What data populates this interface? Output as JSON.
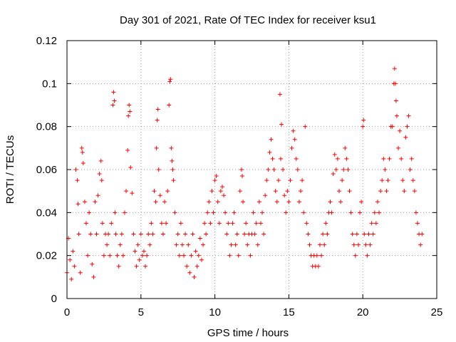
{
  "chart_data": {
    "type": "scatter",
    "title": "Day 301 of 2021, Rate Of TEC Index for receiver ksu1",
    "xlabel": "GPS time / hours",
    "ylabel": "ROTI / TECUs",
    "xlim": [
      0,
      25
    ],
    "ylim": [
      0,
      0.12
    ],
    "xticks": [
      0,
      5,
      10,
      15,
      20,
      25
    ],
    "xtick_labels": [
      "0",
      "5",
      "10",
      "15",
      "20",
      "25"
    ],
    "yticks": [
      0,
      0.02,
      0.04,
      0.06,
      0.08,
      0.1,
      0.12
    ],
    "ytick_labels": [
      "0",
      "0.02",
      "0.04",
      "0.06",
      "0.08",
      "0.1",
      "0.12"
    ],
    "grid": true,
    "marker": "plus",
    "color": "#ff0000",
    "series": [
      {
        "points": [
          [
            0.0,
            0.012
          ],
          [
            0.1,
            0.028
          ],
          [
            0.2,
            0.018
          ],
          [
            0.3,
            0.009
          ],
          [
            0.4,
            0.022
          ],
          [
            0.5,
            0.015
          ],
          [
            0.6,
            0.06
          ],
          [
            0.7,
            0.055
          ],
          [
            0.75,
            0.044
          ],
          [
            0.8,
            0.03
          ],
          [
            0.9,
            0.012
          ],
          [
            1.0,
            0.07
          ],
          [
            1.05,
            0.068
          ],
          [
            1.1,
            0.063
          ],
          [
            1.2,
            0.045
          ],
          [
            1.3,
            0.035
          ],
          [
            1.4,
            0.02
          ],
          [
            1.5,
            0.04
          ],
          [
            1.6,
            0.03
          ],
          [
            1.7,
            0.016
          ],
          [
            1.8,
            0.01
          ],
          [
            1.9,
            0.045
          ],
          [
            2.0,
            0.03
          ],
          [
            2.1,
            0.048
          ],
          [
            2.2,
            0.058
          ],
          [
            2.3,
            0.064
          ],
          [
            2.35,
            0.055
          ],
          [
            2.4,
            0.035
          ],
          [
            2.5,
            0.02
          ],
          [
            2.6,
            0.03
          ],
          [
            2.7,
            0.025
          ],
          [
            2.8,
            0.03
          ],
          [
            2.9,
            0.02
          ],
          [
            3.0,
            0.035
          ],
          [
            3.1,
            0.09
          ],
          [
            3.15,
            0.096
          ],
          [
            3.2,
            0.092
          ],
          [
            3.25,
            0.04
          ],
          [
            3.3,
            0.03
          ],
          [
            3.4,
            0.02
          ],
          [
            3.5,
            0.015
          ],
          [
            3.6,
            0.025
          ],
          [
            3.7,
            0.03
          ],
          [
            3.8,
            0.02
          ],
          [
            3.9,
            0.04
          ],
          [
            4.0,
            0.05
          ],
          [
            4.1,
            0.069
          ],
          [
            4.15,
            0.085
          ],
          [
            4.2,
            0.09
          ],
          [
            4.25,
            0.087
          ],
          [
            4.3,
            0.061
          ],
          [
            4.4,
            0.049
          ],
          [
            4.5,
            0.03
          ],
          [
            4.6,
            0.022
          ],
          [
            4.7,
            0.015
          ],
          [
            4.8,
            0.025
          ],
          [
            4.9,
            0.018
          ],
          [
            5.0,
            0.03
          ],
          [
            5.1,
            0.02
          ],
          [
            5.2,
            0.022
          ],
          [
            5.3,
            0.015
          ],
          [
            5.4,
            0.02
          ],
          [
            5.5,
            0.03
          ],
          [
            5.6,
            0.025
          ],
          [
            5.7,
            0.035
          ],
          [
            5.8,
            0.03
          ],
          [
            5.9,
            0.05
          ],
          [
            6.0,
            0.045
          ],
          [
            6.05,
            0.07
          ],
          [
            6.1,
            0.083
          ],
          [
            6.15,
            0.088
          ],
          [
            6.2,
            0.06
          ],
          [
            6.3,
            0.048
          ],
          [
            6.4,
            0.035
          ],
          [
            6.5,
            0.03
          ],
          [
            6.6,
            0.045
          ],
          [
            6.7,
            0.035
          ],
          [
            6.8,
            0.05
          ],
          [
            6.9,
            0.09
          ],
          [
            6.95,
            0.101
          ],
          [
            7.0,
            0.102
          ],
          [
            7.05,
            0.07
          ],
          [
            7.1,
            0.064
          ],
          [
            7.15,
            0.06
          ],
          [
            7.2,
            0.055
          ],
          [
            7.3,
            0.04
          ],
          [
            7.4,
            0.025
          ],
          [
            7.5,
            0.03
          ],
          [
            7.6,
            0.02
          ],
          [
            7.7,
            0.035
          ],
          [
            7.8,
            0.025
          ],
          [
            7.9,
            0.02
          ],
          [
            8.0,
            0.03
          ],
          [
            8.1,
            0.015
          ],
          [
            8.2,
            0.025
          ],
          [
            8.3,
            0.012
          ],
          [
            8.4,
            0.02
          ],
          [
            8.5,
            0.03
          ],
          [
            8.6,
            0.01
          ],
          [
            8.7,
            0.022
          ],
          [
            8.8,
            0.015
          ],
          [
            8.9,
            0.02
          ],
          [
            9.0,
            0.028
          ],
          [
            9.1,
            0.018
          ],
          [
            9.2,
            0.025
          ],
          [
            9.3,
            0.035
          ],
          [
            9.4,
            0.03
          ],
          [
            9.5,
            0.04
          ],
          [
            9.6,
            0.045
          ],
          [
            9.7,
            0.035
          ],
          [
            9.8,
            0.05
          ],
          [
            9.9,
            0.04
          ],
          [
            10.0,
            0.055
          ],
          [
            10.1,
            0.057
          ],
          [
            10.2,
            0.045
          ],
          [
            10.3,
            0.035
          ],
          [
            10.4,
            0.05
          ],
          [
            10.5,
            0.052
          ],
          [
            10.6,
            0.048
          ],
          [
            10.7,
            0.04
          ],
          [
            10.8,
            0.03
          ],
          [
            10.9,
            0.035
          ],
          [
            11.0,
            0.02
          ],
          [
            11.1,
            0.025
          ],
          [
            11.2,
            0.035
          ],
          [
            11.3,
            0.04
          ],
          [
            11.4,
            0.025
          ],
          [
            11.5,
            0.03
          ],
          [
            11.6,
            0.02
          ],
          [
            11.7,
            0.05
          ],
          [
            11.8,
            0.06
          ],
          [
            11.85,
            0.057
          ],
          [
            11.9,
            0.045
          ],
          [
            12.0,
            0.03
          ],
          [
            12.1,
            0.035
          ],
          [
            12.2,
            0.025
          ],
          [
            12.3,
            0.03
          ],
          [
            12.4,
            0.02
          ],
          [
            12.5,
            0.03
          ],
          [
            12.6,
            0.04
          ],
          [
            12.7,
            0.03
          ],
          [
            12.8,
            0.035
          ],
          [
            12.9,
            0.025
          ],
          [
            13.0,
            0.045
          ],
          [
            13.1,
            0.035
          ],
          [
            13.2,
            0.04
          ],
          [
            13.3,
            0.03
          ],
          [
            13.4,
            0.048
          ],
          [
            13.5,
            0.055
          ],
          [
            13.6,
            0.06
          ],
          [
            13.7,
            0.068
          ],
          [
            13.8,
            0.074
          ],
          [
            13.9,
            0.065
          ],
          [
            14.0,
            0.06
          ],
          [
            14.1,
            0.05
          ],
          [
            14.2,
            0.045
          ],
          [
            14.3,
            0.055
          ],
          [
            14.4,
            0.095
          ],
          [
            14.45,
            0.065
          ],
          [
            14.5,
            0.081
          ],
          [
            14.6,
            0.06
          ],
          [
            14.7,
            0.048
          ],
          [
            14.8,
            0.04
          ],
          [
            14.9,
            0.05
          ],
          [
            15.0,
            0.045
          ],
          [
            15.1,
            0.055
          ],
          [
            15.2,
            0.07
          ],
          [
            15.3,
            0.078
          ],
          [
            15.4,
            0.074
          ],
          [
            15.5,
            0.065
          ],
          [
            15.6,
            0.06
          ],
          [
            15.7,
            0.045
          ],
          [
            15.8,
            0.05
          ],
          [
            15.9,
            0.055
          ],
          [
            16.0,
            0.04
          ],
          [
            16.1,
            0.08
          ],
          [
            16.2,
            0.035
          ],
          [
            16.3,
            0.03
          ],
          [
            16.4,
            0.025
          ],
          [
            16.5,
            0.02
          ],
          [
            16.6,
            0.015
          ],
          [
            16.7,
            0.02
          ],
          [
            16.8,
            0.015
          ],
          [
            16.9,
            0.02
          ],
          [
            17.0,
            0.015
          ],
          [
            17.1,
            0.025
          ],
          [
            17.2,
            0.02
          ],
          [
            17.3,
            0.03
          ],
          [
            17.4,
            0.025
          ],
          [
            17.5,
            0.035
          ],
          [
            17.6,
            0.03
          ],
          [
            17.7,
            0.04
          ],
          [
            17.8,
            0.045
          ],
          [
            17.9,
            0.04
          ],
          [
            18.0,
            0.058
          ],
          [
            18.1,
            0.067
          ],
          [
            18.2,
            0.06
          ],
          [
            18.3,
            0.065
          ],
          [
            18.4,
            0.05
          ],
          [
            18.5,
            0.045
          ],
          [
            18.6,
            0.055
          ],
          [
            18.7,
            0.06
          ],
          [
            18.8,
            0.07
          ],
          [
            18.9,
            0.065
          ],
          [
            19.0,
            0.06
          ],
          [
            19.1,
            0.05
          ],
          [
            19.2,
            0.04
          ],
          [
            19.3,
            0.03
          ],
          [
            19.4,
            0.025
          ],
          [
            19.5,
            0.02
          ],
          [
            19.6,
            0.03
          ],
          [
            19.7,
            0.025
          ],
          [
            19.8,
            0.04
          ],
          [
            19.9,
            0.045
          ],
          [
            20.0,
            0.08
          ],
          [
            20.05,
            0.083
          ],
          [
            20.1,
            0.03
          ],
          [
            20.2,
            0.025
          ],
          [
            20.3,
            0.02
          ],
          [
            20.4,
            0.03
          ],
          [
            20.5,
            0.025
          ],
          [
            20.6,
            0.035
          ],
          [
            20.7,
            0.03
          ],
          [
            20.8,
            0.04
          ],
          [
            20.9,
            0.035
          ],
          [
            21.0,
            0.045
          ],
          [
            21.1,
            0.04
          ],
          [
            21.2,
            0.05
          ],
          [
            21.3,
            0.055
          ],
          [
            21.4,
            0.065
          ],
          [
            21.5,
            0.06
          ],
          [
            21.6,
            0.05
          ],
          [
            21.7,
            0.055
          ],
          [
            21.8,
            0.065
          ],
          [
            21.9,
            0.08
          ],
          [
            22.0,
            0.08
          ],
          [
            22.1,
            0.1
          ],
          [
            22.15,
            0.107
          ],
          [
            22.2,
            0.1
          ],
          [
            22.25,
            0.092
          ],
          [
            22.3,
            0.085
          ],
          [
            22.4,
            0.07
          ],
          [
            22.5,
            0.078
          ],
          [
            22.6,
            0.065
          ],
          [
            22.7,
            0.055
          ],
          [
            22.8,
            0.05
          ],
          [
            22.9,
            0.075
          ],
          [
            23.0,
            0.08
          ],
          [
            23.1,
            0.085
          ],
          [
            23.2,
            0.06
          ],
          [
            23.3,
            0.065
          ],
          [
            23.4,
            0.055
          ],
          [
            23.5,
            0.05
          ],
          [
            23.6,
            0.04
          ],
          [
            23.7,
            0.035
          ],
          [
            23.8,
            0.03
          ],
          [
            23.9,
            0.025
          ],
          [
            24.0,
            0.03
          ]
        ]
      }
    ]
  }
}
